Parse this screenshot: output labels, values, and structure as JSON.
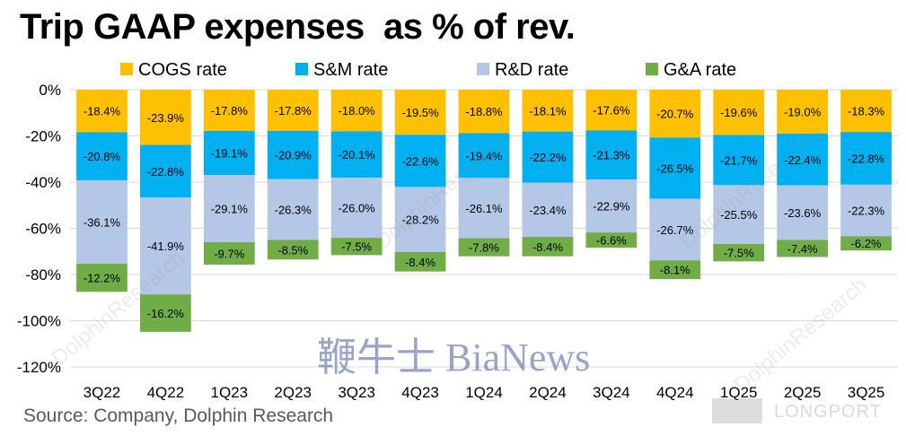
{
  "title": "Trip GAAP expenses  as % of rev.",
  "source": "Source: Company, Dolphin Research",
  "watermarks": {
    "bianews": "鞭牛士 BiaNews",
    "dolphin": "DolphinResearch",
    "longport": "LONGPORT"
  },
  "colors": {
    "cogs": "#FFC000",
    "sm": "#00B0F0",
    "rd": "#B4C7E7",
    "ga": "#70AD47",
    "grid": "#D9D9D9",
    "axis_text": "#000000"
  },
  "chart_data": {
    "type": "bar",
    "stacked": true,
    "title": "Trip GAAP expenses  as % of rev.",
    "xlabel": "",
    "ylabel": "",
    "ylim": [
      -120,
      0
    ],
    "yticks": [
      0,
      -20,
      -40,
      -60,
      -80,
      -100,
      -120
    ],
    "yticks_labels": [
      "0%",
      "-20%",
      "-40%",
      "-60%",
      "-80%",
      "-100%",
      "-120%"
    ],
    "legend_position": "top",
    "categories": [
      "3Q22",
      "4Q22",
      "1Q23",
      "2Q23",
      "3Q23",
      "4Q23",
      "1Q24",
      "2Q24",
      "3Q24",
      "4Q24",
      "1Q25",
      "2Q25",
      "3Q25"
    ],
    "series": [
      {
        "name": "COGS rate",
        "key": "cogs",
        "values": [
          -18.4,
          -23.9,
          -17.8,
          -17.8,
          -18.0,
          -19.5,
          -18.8,
          -18.1,
          -17.6,
          -20.7,
          -19.6,
          -19.0,
          -18.3
        ]
      },
      {
        "name": "S&M rate",
        "key": "sm",
        "values": [
          -20.8,
          -22.8,
          -19.1,
          -20.9,
          -20.1,
          -22.6,
          -19.4,
          -22.2,
          -21.3,
          -26.5,
          -21.7,
          -22.4,
          -22.8
        ]
      },
      {
        "name": "R&D rate",
        "key": "rd",
        "values": [
          -36.1,
          -41.9,
          -29.1,
          -26.3,
          -26.0,
          -28.2,
          -26.1,
          -23.4,
          -22.9,
          -26.7,
          -25.5,
          -23.6,
          -22.3
        ]
      },
      {
        "name": "G&A rate",
        "key": "ga",
        "values": [
          -12.2,
          -16.2,
          -9.7,
          -8.5,
          -7.5,
          -8.4,
          -7.8,
          -8.4,
          -6.6,
          -8.1,
          -7.5,
          -7.4,
          -6.2
        ]
      }
    ]
  }
}
